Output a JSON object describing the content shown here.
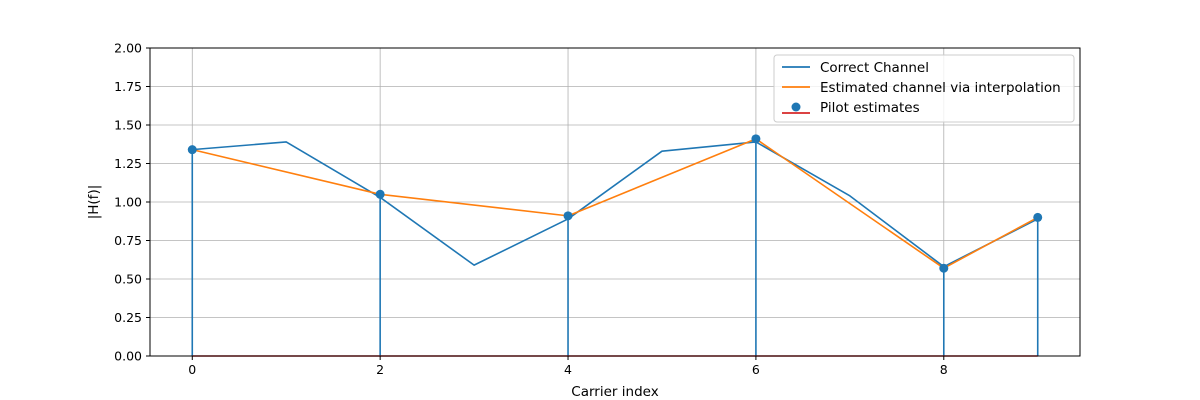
{
  "chart_data": {
    "type": "line",
    "xlabel": "Carrier index",
    "ylabel": "|H(f)|",
    "xlim": [
      -0.45,
      9.45
    ],
    "ylim": [
      0,
      2
    ],
    "xticks": [
      0,
      2,
      4,
      6,
      8
    ],
    "yticks": [
      0.0,
      0.25,
      0.5,
      0.75,
      1.0,
      1.25,
      1.5,
      1.75,
      2.0
    ],
    "ytick_labels": [
      "0.00",
      "0.25",
      "0.50",
      "0.75",
      "1.00",
      "1.25",
      "1.50",
      "1.75",
      "2.00"
    ],
    "grid": true,
    "legend_position": "top-right",
    "series": [
      {
        "name": "Correct Channel",
        "kind": "line",
        "color": "#1f77b4",
        "x": [
          0,
          1,
          2,
          3,
          4,
          5,
          6,
          7,
          8,
          9
        ],
        "y": [
          1.34,
          1.39,
          1.03,
          0.59,
          0.89,
          1.33,
          1.39,
          1.04,
          0.58,
          0.89
        ]
      },
      {
        "name": "Estimated channel via interpolation",
        "kind": "line",
        "color": "#ff7f0e",
        "x": [
          0,
          2,
          4,
          6,
          8,
          9
        ],
        "y": [
          1.34,
          1.05,
          0.91,
          1.41,
          0.57,
          0.9
        ]
      },
      {
        "name": "Pilot estimates",
        "kind": "stem",
        "color": "#1f77b4",
        "baseline_color": "#d62728",
        "x": [
          0,
          2,
          4,
          6,
          8,
          9
        ],
        "y": [
          1.34,
          1.05,
          0.91,
          1.41,
          0.57,
          0.9
        ]
      }
    ]
  }
}
